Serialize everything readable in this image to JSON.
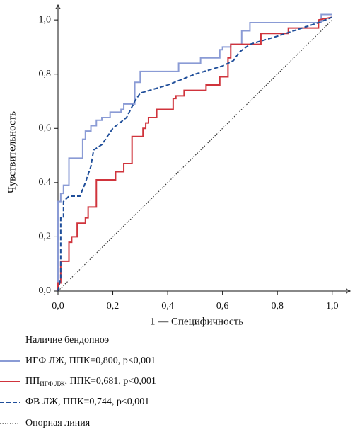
{
  "chart_data": {
    "type": "line",
    "x_label": "1 — Специфичность",
    "y_label": "Чувствительность",
    "xlim": [
      0,
      1.06
    ],
    "ylim": [
      0,
      1.05
    ],
    "xticks": [
      {
        "value": 0,
        "label": "0,0"
      },
      {
        "value": 0.2,
        "label": "0,2"
      },
      {
        "value": 0.4,
        "label": "0,4"
      },
      {
        "value": 0.6,
        "label": "0,6"
      },
      {
        "value": 0.8,
        "label": "0,8"
      },
      {
        "value": 1,
        "label": "1,0"
      }
    ],
    "yticks": [
      {
        "value": 0,
        "label": "0,0"
      },
      {
        "value": 0.2,
        "label": "0,2"
      },
      {
        "value": 0.4,
        "label": "0,4"
      },
      {
        "value": 0.6,
        "label": "0,6"
      },
      {
        "value": 0.8,
        "label": "0,8"
      },
      {
        "value": 1,
        "label": "1,0"
      }
    ],
    "legend_title": "Наличие бендопноэ",
    "series": [
      {
        "name": "ИГФ ЛЖ, ППК=0,800, p<0,001",
        "color": "#8a9bd5",
        "dash": "solid",
        "x": [
          0,
          0,
          0.01,
          0.01,
          0.02,
          0.02,
          0.04,
          0.04,
          0.09,
          0.09,
          0.1,
          0.1,
          0.12,
          0.12,
          0.14,
          0.14,
          0.16,
          0.16,
          0.19,
          0.19,
          0.23,
          0.23,
          0.24,
          0.24,
          0.28,
          0.28,
          0.3,
          0.3,
          0.44,
          0.44,
          0.52,
          0.52,
          0.59,
          0.59,
          0.6,
          0.6,
          0.63,
          0.63,
          0.67,
          0.67,
          0.7,
          0.7,
          0.96,
          0.96,
          1.0
        ],
        "values": [
          0,
          0.33,
          0.33,
          0.36,
          0.36,
          0.39,
          0.39,
          0.49,
          0.49,
          0.56,
          0.56,
          0.59,
          0.59,
          0.61,
          0.61,
          0.63,
          0.63,
          0.64,
          0.64,
          0.66,
          0.66,
          0.67,
          0.67,
          0.69,
          0.69,
          0.77,
          0.77,
          0.81,
          0.81,
          0.84,
          0.84,
          0.86,
          0.86,
          0.89,
          0.89,
          0.9,
          0.9,
          0.91,
          0.91,
          0.96,
          0.96,
          0.99,
          0.99,
          1.02,
          1.02
        ]
      },
      {
        "name": "ПП",
        "name_subscript": "ИГФ ЛЖ",
        "name_suffix": ", ППК=0,681, p<0,001",
        "color": "#d0343c",
        "dash": "solid",
        "x": [
          0,
          0,
          0.01,
          0.01,
          0.04,
          0.04,
          0.05,
          0.05,
          0.07,
          0.07,
          0.1,
          0.1,
          0.11,
          0.11,
          0.14,
          0.14,
          0.21,
          0.21,
          0.24,
          0.24,
          0.27,
          0.27,
          0.31,
          0.31,
          0.32,
          0.32,
          0.33,
          0.33,
          0.36,
          0.36,
          0.42,
          0.42,
          0.43,
          0.43,
          0.46,
          0.46,
          0.54,
          0.54,
          0.59,
          0.59,
          0.62,
          0.62,
          0.63,
          0.63,
          0.74,
          0.74,
          0.84,
          0.84,
          0.95,
          0.95,
          1.0
        ],
        "values": [
          0,
          0.03,
          0.03,
          0.11,
          0.11,
          0.18,
          0.18,
          0.2,
          0.2,
          0.25,
          0.25,
          0.27,
          0.27,
          0.31,
          0.31,
          0.41,
          0.41,
          0.44,
          0.44,
          0.47,
          0.47,
          0.57,
          0.57,
          0.6,
          0.6,
          0.62,
          0.62,
          0.64,
          0.64,
          0.67,
          0.67,
          0.71,
          0.71,
          0.72,
          0.72,
          0.74,
          0.74,
          0.76,
          0.76,
          0.79,
          0.79,
          0.86,
          0.86,
          0.91,
          0.91,
          0.95,
          0.95,
          0.97,
          0.97,
          1.0,
          1.01
        ]
      },
      {
        "name": "ФВ ЛЖ, ППК=0,744, p<0,001",
        "color": "#1f4e9a",
        "dash": "dashed",
        "x": [
          0,
          0.01,
          0.01,
          0.02,
          0.02,
          0.04,
          0.08,
          0.1,
          0.12,
          0.13,
          0.16,
          0.2,
          0.25,
          0.28,
          0.3,
          0.4,
          0.5,
          0.6,
          0.64,
          0.66,
          0.7,
          0.8,
          0.86,
          0.95,
          1.0
        ],
        "values": [
          0,
          0.05,
          0.27,
          0.27,
          0.33,
          0.35,
          0.35,
          0.4,
          0.46,
          0.52,
          0.54,
          0.6,
          0.64,
          0.7,
          0.73,
          0.76,
          0.8,
          0.83,
          0.85,
          0.88,
          0.91,
          0.94,
          0.96,
          0.99,
          1.01
        ]
      },
      {
        "name": "Опорная линия",
        "color": "#333333",
        "dash": "dotted",
        "x": [
          0,
          1
        ],
        "values": [
          0,
          1
        ]
      }
    ]
  }
}
